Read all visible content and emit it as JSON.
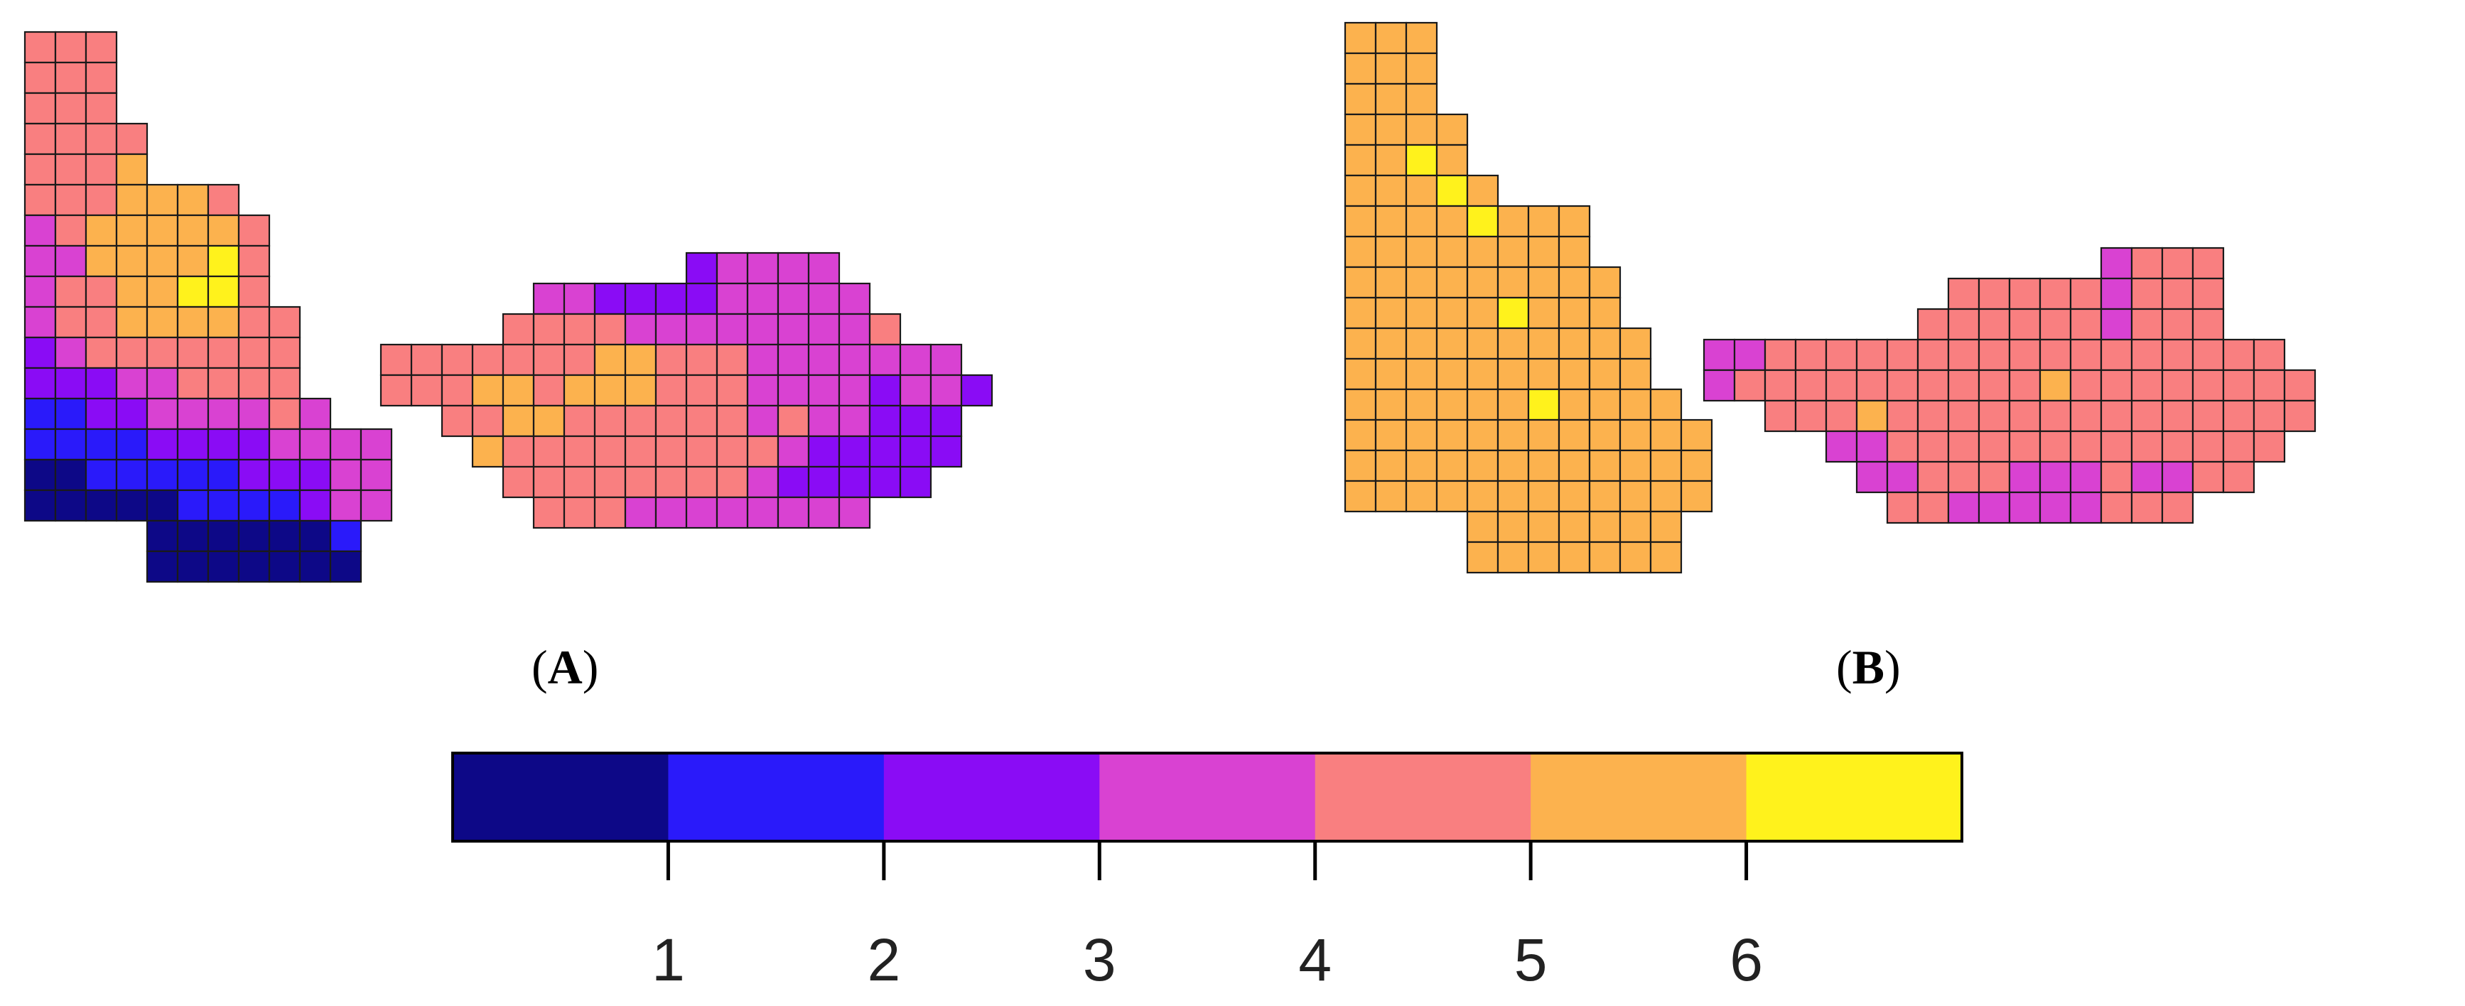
{
  "figure": {
    "panels": [
      {
        "id": "A",
        "label": "A"
      },
      {
        "id": "B",
        "label": "B"
      }
    ]
  },
  "legend": {
    "colors": [
      "#0d0887",
      "#2a1afa",
      "#8a0cf5",
      "#d942d2",
      "#f97f80",
      "#fcb24e",
      "#fff21c"
    ],
    "ticks": [
      "1",
      "2",
      "3",
      "4",
      "5",
      "6"
    ]
  },
  "map_data": {
    "A": {
      "west_region_rows": [
        {
          "cols": [
            0,
            2
          ],
          "values": [
            5,
            5,
            5
          ]
        },
        {
          "cols": [
            0,
            2
          ],
          "values": [
            5,
            5,
            5
          ]
        },
        {
          "cols": [
            0,
            2
          ],
          "values": [
            5,
            5,
            5
          ]
        },
        {
          "cols": [
            0,
            3
          ],
          "values": [
            5,
            5,
            5,
            5
          ]
        },
        {
          "cols": [
            0,
            3
          ],
          "values": [
            5,
            5,
            5,
            6
          ]
        },
        {
          "cols": [
            0,
            6
          ],
          "values": [
            5,
            5,
            5,
            6,
            6,
            6,
            5
          ]
        },
        {
          "cols": [
            0,
            7
          ],
          "values": [
            4,
            5,
            6,
            6,
            6,
            6,
            6,
            5
          ]
        },
        {
          "cols": [
            0,
            7
          ],
          "values": [
            4,
            4,
            6,
            6,
            6,
            6,
            7,
            5
          ]
        },
        {
          "cols": [
            0,
            7
          ],
          "values": [
            4,
            5,
            5,
            6,
            6,
            7,
            7,
            5
          ]
        },
        {
          "cols": [
            0,
            8
          ],
          "values": [
            4,
            5,
            5,
            6,
            6,
            6,
            6,
            5,
            5
          ]
        },
        {
          "cols": [
            0,
            8
          ],
          "values": [
            3,
            4,
            5,
            5,
            5,
            5,
            5,
            5,
            5
          ]
        },
        {
          "cols": [
            0,
            8
          ],
          "values": [
            3,
            3,
            3,
            4,
            4,
            5,
            5,
            5,
            5
          ]
        },
        {
          "cols": [
            0,
            9
          ],
          "values": [
            2,
            2,
            3,
            3,
            4,
            4,
            4,
            4,
            5,
            4
          ]
        },
        {
          "cols": [
            0,
            11
          ],
          "values": [
            2,
            2,
            2,
            2,
            3,
            3,
            3,
            3,
            4,
            4,
            4,
            4
          ]
        },
        {
          "cols": [
            0,
            11
          ],
          "values": [
            1,
            1,
            2,
            2,
            2,
            2,
            2,
            3,
            3,
            3,
            4,
            4
          ]
        },
        {
          "cols": [
            0,
            11
          ],
          "values": [
            1,
            1,
            1,
            1,
            1,
            2,
            2,
            2,
            2,
            3,
            4,
            4
          ]
        },
        {
          "cols": [
            4,
            10
          ],
          "values": [
            1,
            1,
            1,
            1,
            1,
            1,
            2
          ]
        },
        {
          "cols": [
            4,
            10
          ],
          "values": [
            1,
            1,
            1,
            1,
            1,
            1,
            1
          ]
        }
      ],
      "east_region_rows": [
        {
          "cols": [
            10,
            14
          ],
          "values": [
            3,
            4,
            4,
            4,
            4
          ]
        },
        {
          "cols": [
            5,
            15
          ],
          "values": [
            4,
            4,
            3,
            3,
            3,
            3,
            4,
            4,
            4,
            4,
            4
          ]
        },
        {
          "cols": [
            4,
            16
          ],
          "values": [
            5,
            5,
            5,
            5,
            4,
            4,
            4,
            4,
            4,
            4,
            4,
            4,
            5
          ]
        },
        {
          "cols": [
            0,
            18
          ],
          "values": [
            5,
            5,
            5,
            5,
            5,
            5,
            5,
            6,
            6,
            5,
            5,
            5,
            4,
            4,
            4,
            4,
            4,
            4,
            4
          ]
        },
        {
          "cols": [
            0,
            19
          ],
          "values": [
            5,
            5,
            5,
            6,
            6,
            5,
            6,
            6,
            6,
            5,
            5,
            5,
            4,
            4,
            4,
            4,
            3,
            4,
            4,
            3
          ]
        },
        {
          "cols": [
            2,
            18
          ],
          "values": [
            5,
            5,
            6,
            6,
            5,
            5,
            5,
            5,
            5,
            5,
            4,
            5,
            4,
            4,
            3,
            3,
            3
          ]
        },
        {
          "cols": [
            3,
            18
          ],
          "values": [
            6,
            5,
            5,
            5,
            5,
            5,
            5,
            5,
            5,
            5,
            4,
            3,
            3,
            3,
            3,
            3
          ]
        },
        {
          "cols": [
            4,
            17
          ],
          "values": [
            5,
            5,
            5,
            5,
            5,
            5,
            5,
            5,
            4,
            3,
            3,
            3,
            3,
            3
          ]
        },
        {
          "cols": [
            5,
            15
          ],
          "values": [
            5,
            5,
            5,
            4,
            4,
            4,
            4,
            4,
            4,
            4,
            4
          ]
        }
      ]
    },
    "B": {
      "west_region_rows": [
        {
          "cols": [
            0,
            2
          ],
          "values": [
            6,
            6,
            6
          ]
        },
        {
          "cols": [
            0,
            2
          ],
          "values": [
            6,
            6,
            6
          ]
        },
        {
          "cols": [
            0,
            2
          ],
          "values": [
            6,
            6,
            6
          ]
        },
        {
          "cols": [
            0,
            3
          ],
          "values": [
            6,
            6,
            6,
            6
          ]
        },
        {
          "cols": [
            0,
            3
          ],
          "values": [
            6,
            6,
            7,
            6
          ]
        },
        {
          "cols": [
            0,
            4
          ],
          "values": [
            6,
            6,
            6,
            7,
            6
          ]
        },
        {
          "cols": [
            0,
            7
          ],
          "values": [
            6,
            6,
            6,
            6,
            7,
            6,
            6,
            6
          ]
        },
        {
          "cols": [
            0,
            7
          ],
          "values": [
            6,
            6,
            6,
            6,
            6,
            6,
            6,
            6
          ]
        },
        {
          "cols": [
            0,
            8
          ],
          "values": [
            6,
            6,
            6,
            6,
            6,
            6,
            6,
            6,
            6
          ]
        },
        {
          "cols": [
            0,
            8
          ],
          "values": [
            6,
            6,
            6,
            6,
            6,
            7,
            6,
            6,
            6
          ]
        },
        {
          "cols": [
            0,
            9
          ],
          "values": [
            6,
            6,
            6,
            6,
            6,
            6,
            6,
            6,
            6,
            6
          ]
        },
        {
          "cols": [
            0,
            9
          ],
          "values": [
            6,
            6,
            6,
            6,
            6,
            6,
            6,
            6,
            6,
            6
          ]
        },
        {
          "cols": [
            0,
            10
          ],
          "values": [
            6,
            6,
            6,
            6,
            6,
            6,
            7,
            6,
            6,
            6,
            6
          ]
        },
        {
          "cols": [
            0,
            11
          ],
          "values": [
            6,
            6,
            6,
            6,
            6,
            6,
            6,
            6,
            6,
            6,
            6,
            6
          ]
        },
        {
          "cols": [
            0,
            11
          ],
          "values": [
            6,
            6,
            6,
            6,
            6,
            6,
            6,
            6,
            6,
            6,
            6,
            6
          ]
        },
        {
          "cols": [
            0,
            11
          ],
          "values": [
            6,
            6,
            6,
            6,
            6,
            6,
            6,
            6,
            6,
            6,
            6,
            6
          ]
        },
        {
          "cols": [
            4,
            10
          ],
          "values": [
            6,
            6,
            6,
            6,
            6,
            6,
            6
          ]
        },
        {
          "cols": [
            4,
            10
          ],
          "values": [
            6,
            6,
            6,
            6,
            6,
            6,
            6
          ]
        }
      ],
      "east_region_rows": [
        {
          "cols": [
            13,
            16
          ],
          "values": [
            4,
            5,
            5,
            5
          ]
        },
        {
          "cols": [
            8,
            16
          ],
          "values": [
            5,
            5,
            5,
            5,
            5,
            4,
            5,
            5,
            5
          ]
        },
        {
          "cols": [
            7,
            16
          ],
          "values": [
            5,
            5,
            5,
            5,
            5,
            5,
            4,
            5,
            5,
            5
          ]
        },
        {
          "cols": [
            0,
            18
          ],
          "values": [
            4,
            4,
            5,
            5,
            5,
            5,
            5,
            5,
            5,
            5,
            5,
            5,
            5,
            5,
            5,
            5,
            5,
            5,
            5
          ]
        },
        {
          "cols": [
            0,
            19
          ],
          "values": [
            4,
            5,
            5,
            5,
            5,
            5,
            5,
            5,
            5,
            5,
            5,
            6,
            5,
            5,
            5,
            5,
            5,
            5,
            5,
            5
          ]
        },
        {
          "cols": [
            2,
            19
          ],
          "values": [
            5,
            5,
            5,
            6,
            5,
            5,
            5,
            5,
            5,
            5,
            5,
            5,
            5,
            5,
            5,
            5,
            5,
            5
          ]
        },
        {
          "cols": [
            4,
            18
          ],
          "values": [
            4,
            4,
            5,
            5,
            5,
            5,
            5,
            5,
            5,
            5,
            5,
            5,
            5,
            5,
            5
          ]
        },
        {
          "cols": [
            5,
            17
          ],
          "values": [
            4,
            4,
            5,
            5,
            5,
            4,
            4,
            4,
            5,
            4,
            4,
            5,
            5
          ]
        },
        {
          "cols": [
            6,
            15
          ],
          "values": [
            5,
            5,
            4,
            4,
            4,
            4,
            4,
            5,
            5,
            5
          ]
        }
      ]
    }
  }
}
